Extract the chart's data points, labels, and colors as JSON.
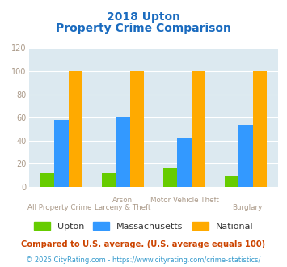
{
  "title_line1": "2018 Upton",
  "title_line2": "Property Crime Comparison",
  "categories_top": [
    "",
    "Arson",
    "Motor Vehicle Theft",
    ""
  ],
  "categories_bottom": [
    "All Property Crime",
    "Larceny & Theft",
    "",
    "Burglary"
  ],
  "series": [
    {
      "label": "Upton",
      "color": "#66cc00",
      "values": [
        12,
        12,
        16,
        10
      ]
    },
    {
      "label": "Massachusetts",
      "color": "#3399ff",
      "values": [
        58,
        61,
        42,
        54
      ]
    },
    {
      "label": "National",
      "color": "#ffaa00",
      "values": [
        100,
        100,
        100,
        100
      ]
    }
  ],
  "ylim": [
    0,
    120
  ],
  "yticks": [
    0,
    20,
    40,
    60,
    80,
    100,
    120
  ],
  "bar_width": 0.23,
  "bg_color": "#dce9f0",
  "title_color": "#1a6bbf",
  "axis_label_color": "#aa9988",
  "legend_text_color": "#333333",
  "footnote1": "Compared to U.S. average. (U.S. average equals 100)",
  "footnote2": "© 2025 CityRating.com - https://www.cityrating.com/crime-statistics/",
  "footnote1_color": "#cc4400",
  "footnote2_color": "#3399cc"
}
